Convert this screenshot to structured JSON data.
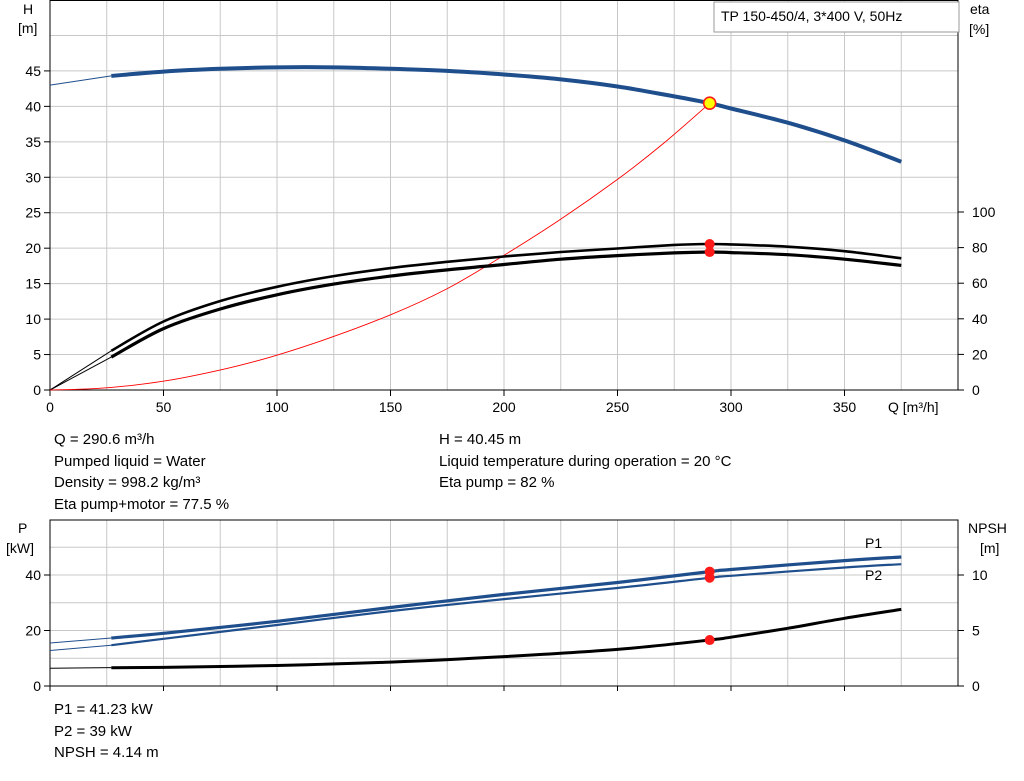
{
  "chart_data": [
    {
      "type": "line",
      "legend": "TP 150-450/4, 3*400 V, 50Hz",
      "xlabel": "Q [m³/h]",
      "xlim": [
        0,
        400
      ],
      "xticks": [
        0,
        50,
        100,
        150,
        200,
        250,
        300,
        350
      ],
      "ylabel_left": "H",
      "ylabel_left_unit": "[m]",
      "ylim_left": [
        0,
        55
      ],
      "yticks_left": [
        0,
        5,
        10,
        15,
        20,
        25,
        30,
        35,
        40,
        45
      ],
      "ylabel_right": "eta",
      "ylabel_right_unit": "[%]",
      "ylim_right": [
        0,
        100
      ],
      "yticks_right": [
        0,
        20,
        40,
        60,
        80,
        100
      ],
      "grid": true,
      "series": [
        {
          "axis": "left",
          "color": "#1f4e8c",
          "x": [
            27,
            50,
            75,
            100,
            125,
            150,
            175,
            200,
            225,
            250,
            275,
            290.6,
            300,
            325,
            350,
            375
          ],
          "y": [
            44.3,
            44.9,
            45.3,
            45.5,
            45.5,
            45.3,
            45.0,
            44.5,
            43.8,
            42.8,
            41.4,
            40.45,
            39.7,
            37.7,
            35.2,
            32.2
          ]
        },
        {
          "axis": "right",
          "color": "#000000",
          "x": [
            27,
            50,
            75,
            100,
            125,
            150,
            175,
            200,
            225,
            250,
            275,
            290.6,
            300,
            325,
            350,
            375
          ],
          "y": [
            22,
            38.5,
            50,
            58,
            64,
            68.5,
            72,
            75,
            77.5,
            79.5,
            81.5,
            82,
            81.8,
            80.5,
            78,
            74
          ]
        },
        {
          "axis": "right",
          "color": "#000000",
          "x": [
            27,
            50,
            75,
            100,
            125,
            150,
            175,
            200,
            225,
            250,
            275,
            290.6,
            300,
            325,
            350,
            375
          ],
          "y": [
            18.5,
            34.5,
            45.5,
            53.5,
            59.5,
            64,
            67.5,
            70.5,
            73.5,
            75.5,
            77,
            77.5,
            77.2,
            76,
            73.5,
            70
          ]
        },
        {
          "axis": "left",
          "color": "#ff0000",
          "x": [
            0,
            20,
            40,
            60,
            90,
            120,
            150,
            175,
            200,
            225,
            250,
            270,
            290.6
          ],
          "y": [
            0,
            0.2,
            0.8,
            1.8,
            4.0,
            7.0,
            10.6,
            14.3,
            19.0,
            24.1,
            29.7,
            34.7,
            40.45
          ]
        }
      ],
      "operating_point": {
        "x": 290.6,
        "H": 40.45,
        "eta_pump": 82,
        "eta_total": 77.5
      }
    },
    {
      "type": "line",
      "xlim": [
        0,
        400
      ],
      "ylabel_left": "P",
      "ylabel_left_unit": "[kW]",
      "ylim_left": [
        0,
        50
      ],
      "yticks_left": [
        0,
        20,
        40
      ],
      "ylabel_right": "NPSH",
      "ylabel_right_unit": "[m]",
      "ylim_right": [
        0,
        12.5
      ],
      "yticks_right": [
        0,
        5,
        10
      ],
      "grid": true,
      "series": [
        {
          "name": "P1",
          "axis": "left",
          "color": "#1f4e8c",
          "x": [
            27,
            50,
            100,
            150,
            200,
            250,
            290.6,
            300,
            350,
            375
          ],
          "y": [
            17.3,
            19.0,
            23.3,
            28.3,
            33.0,
            37.3,
            41.23,
            42.0,
            45.2,
            46.5
          ]
        },
        {
          "name": "P2",
          "axis": "left",
          "color": "#1f4e8c",
          "x": [
            27,
            50,
            100,
            150,
            200,
            250,
            290.6,
            300,
            350,
            375
          ],
          "y": [
            14.7,
            17.0,
            22.0,
            27.0,
            31.3,
            35.3,
            39.0,
            39.7,
            42.7,
            43.9
          ]
        },
        {
          "axis": "right",
          "color": "#000000",
          "x": [
            27,
            50,
            100,
            150,
            200,
            250,
            290.6,
            300,
            325,
            350,
            375
          ],
          "y": [
            1.65,
            1.68,
            1.85,
            2.15,
            2.65,
            3.3,
            4.14,
            4.4,
            5.2,
            6.1,
            6.9
          ]
        }
      ],
      "operating_point": {
        "x": 290.6,
        "P1": 41.23,
        "P2": 39,
        "NPSH": 4.14
      }
    }
  ],
  "info_top": {
    "q": "Q = 290.6 m³/h",
    "liquid": "Pumped liquid = Water",
    "density": "Density = 998.2 kg/m³",
    "eta_total": "Eta pump+motor = 77.5 %",
    "h": "H = 40.45 m",
    "temperature": "Liquid temperature during operation = 20 °C",
    "eta_pump": "Eta pump = 82 %"
  },
  "info_bottom": {
    "p1": "P1 = 41.23 kW",
    "p2": "P2 = 39 kW",
    "npsh": "NPSH = 4.14 m"
  }
}
